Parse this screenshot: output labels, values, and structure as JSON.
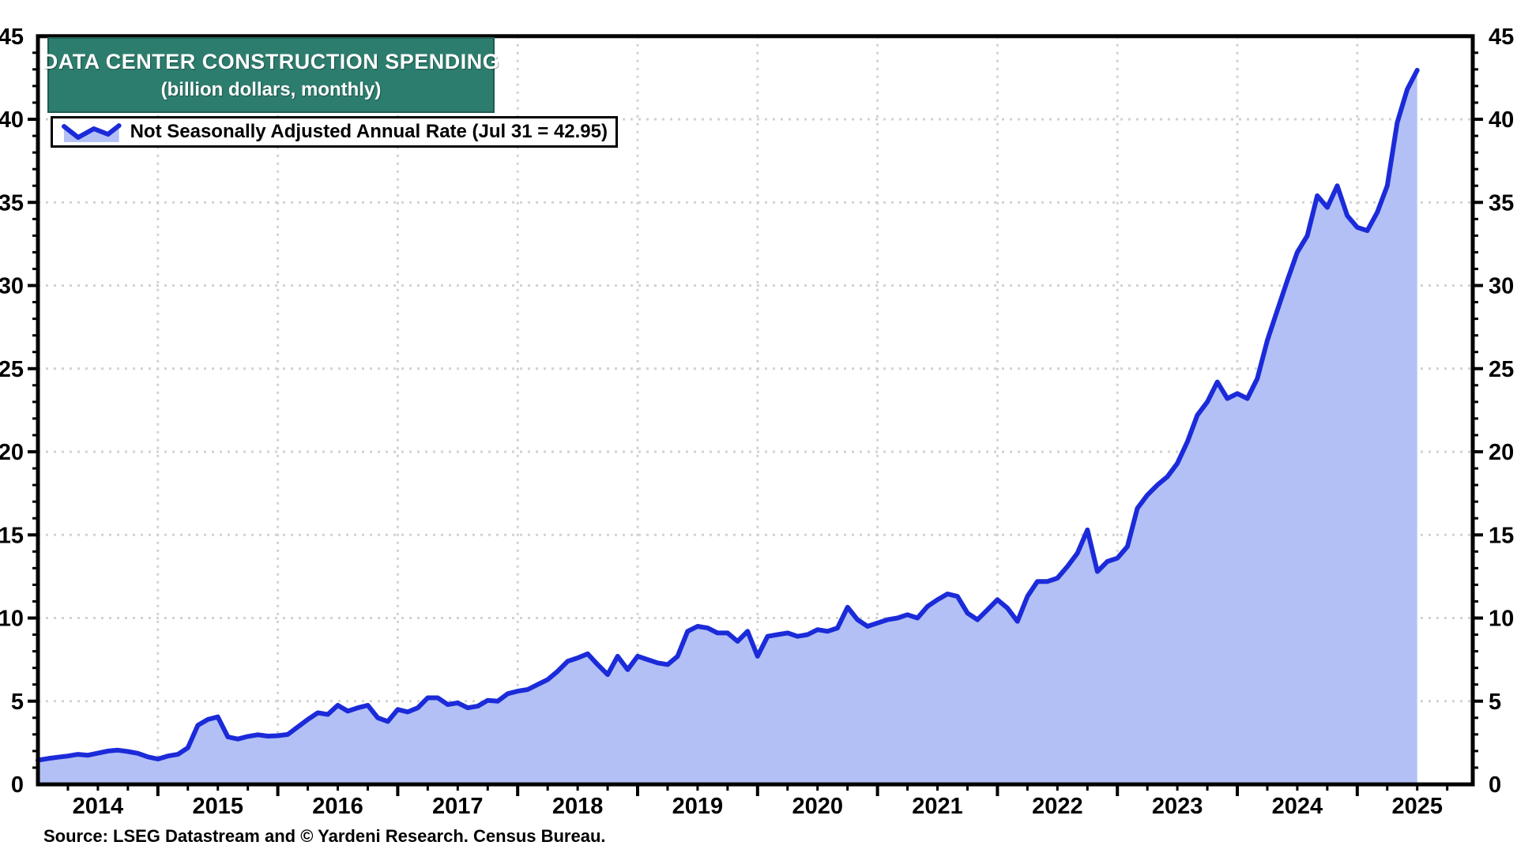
{
  "title": {
    "line1": "DATA CENTER CONSTRUCTION SPENDING",
    "line2": "(billion dollars, monthly)"
  },
  "legend": {
    "label": "Not Seasonally Adjusted Annual Rate (Jul 31 = 42.95)"
  },
  "source": "Source: LSEG Datastream and © Yardeni Research. Census Bureau.",
  "colors": {
    "title_bg": "#2d7d6e",
    "title_text": "#ffffff",
    "line": "#1b2bd9",
    "area_fill": "#b2c0f5",
    "gridline": "#d2d2d2",
    "frame": "#000000",
    "label_text": "#000000"
  },
  "chart_data": {
    "type": "area",
    "title": "DATA CENTER CONSTRUCTION SPENDING",
    "subtitle": "(billion dollars, monthly)",
    "legend_entries": [
      "Not Seasonally Adjusted Annual Rate (Jul 31 = 42.95)"
    ],
    "legend_position": "top-left",
    "grid": "dotted, both axes",
    "ylim": [
      0,
      45
    ],
    "yticks": [
      0,
      5,
      10,
      15,
      20,
      25,
      30,
      35,
      40,
      45
    ],
    "y_minor_tick_step": 1,
    "x_year_labels": [
      "2014",
      "2015",
      "2016",
      "2017",
      "2018",
      "2019",
      "2020",
      "2021",
      "2022",
      "2023",
      "2024",
      "2025"
    ],
    "x_domain": [
      "2014-01",
      "2026-01"
    ],
    "x_minor_tick": "quarterly",
    "last_point": {
      "date": "Jul 31 2025",
      "value": 42.95
    },
    "series": [
      {
        "name": "Not Seasonally Adjusted Annual Rate",
        "start": "2014-01",
        "frequency": "monthly",
        "values": [
          1.45,
          1.55,
          1.63,
          1.7,
          1.8,
          1.75,
          1.87,
          2.0,
          2.05,
          1.97,
          1.86,
          1.65,
          1.52,
          1.7,
          1.8,
          2.2,
          3.55,
          3.9,
          4.05,
          2.85,
          2.72,
          2.88,
          2.98,
          2.9,
          2.92,
          3.0,
          3.45,
          3.9,
          4.3,
          4.2,
          4.75,
          4.4,
          4.6,
          4.75,
          4.0,
          3.78,
          4.5,
          4.35,
          4.6,
          5.2,
          5.2,
          4.8,
          4.9,
          4.6,
          4.7,
          5.05,
          5.0,
          5.45,
          5.6,
          5.7,
          6.0,
          6.3,
          6.8,
          7.4,
          7.6,
          7.85,
          7.2,
          6.6,
          7.7,
          6.9,
          7.7,
          7.5,
          7.3,
          7.2,
          7.7,
          9.2,
          9.5,
          9.4,
          9.1,
          9.1,
          8.6,
          9.2,
          7.7,
          8.9,
          9.0,
          9.1,
          8.9,
          9.0,
          9.3,
          9.2,
          9.4,
          10.65,
          9.9,
          9.5,
          9.7,
          9.9,
          10.0,
          10.2,
          10.0,
          10.7,
          11.1,
          11.45,
          11.3,
          10.3,
          9.9,
          10.5,
          11.1,
          10.6,
          9.8,
          11.3,
          12.2,
          12.2,
          12.4,
          13.1,
          13.9,
          15.3,
          12.8,
          13.4,
          13.6,
          14.3,
          16.6,
          17.4,
          18.0,
          18.5,
          19.3,
          20.6,
          22.2,
          23.0,
          24.2,
          23.2,
          23.5,
          23.2,
          24.4,
          26.7,
          28.5,
          30.3,
          32.0,
          33.0,
          35.4,
          34.7,
          36.0,
          34.2,
          33.5,
          33.3,
          34.4,
          36.0,
          39.8,
          41.8,
          42.95
        ]
      }
    ]
  }
}
